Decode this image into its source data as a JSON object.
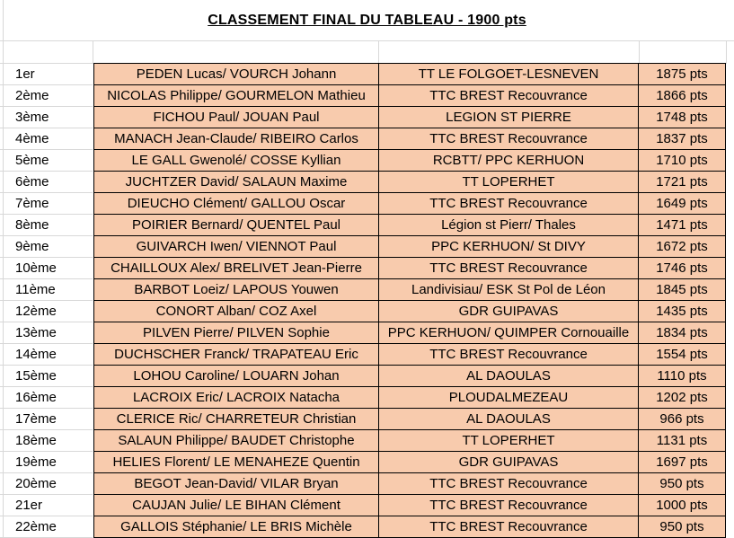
{
  "sheet": {
    "title": "CLASSEMENT FINAL DU TABLEAU - 1900 pts"
  },
  "colors": {
    "cell_fill": "#F8CBAD",
    "cell_border": "#000000",
    "gridline": "#D8D8D8",
    "text": "#000000",
    "background": "#FFFFFF"
  },
  "table": {
    "columns": [
      "rank",
      "players",
      "club",
      "points"
    ],
    "rows": [
      {
        "rank": "1er",
        "players": "PEDEN Lucas/ VOURCH Johann",
        "club": "TT LE FOLGOET-LESNEVEN",
        "points": "1875 pts"
      },
      {
        "rank": "2ème",
        "players": "NICOLAS Philippe/ GOURMELON Mathieu",
        "club": "TTC BREST Recouvrance",
        "points": "1866 pts"
      },
      {
        "rank": "3ème",
        "players": "FICHOU Paul/ JOUAN Paul",
        "club": "LEGION ST PIERRE",
        "points": "1748 pts"
      },
      {
        "rank": "4ème",
        "players": "MANACH Jean-Claude/ RIBEIRO Carlos",
        "club": "TTC BREST Recouvrance",
        "points": "1837 pts"
      },
      {
        "rank": "5ème",
        "players": "LE GALL Gwenolé/ COSSE Kyllian",
        "club": "RCBTT/ PPC KERHUON",
        "points": "1710 pts"
      },
      {
        "rank": "6ème",
        "players": "JUCHTZER David/ SALAUN Maxime",
        "club": "TT LOPERHET",
        "points": "1721 pts"
      },
      {
        "rank": "7ème",
        "players": "DIEUCHO Clément/ GALLOU Oscar",
        "club": "TTC BREST Recouvrance",
        "points": "1649 pts"
      },
      {
        "rank": "8ème",
        "players": "POIRIER Bernard/ QUENTEL Paul",
        "club": "Légion st Pierr/ Thales",
        "points": "1471 pts"
      },
      {
        "rank": "9ème",
        "players": "GUIVARCH Iwen/ VIENNOT Paul",
        "club": "PPC KERHUON/ St DIVY",
        "points": "1672 pts"
      },
      {
        "rank": "10ème",
        "players": "CHAILLOUX Alex/ BRELIVET Jean-Pierre",
        "club": "TTC BREST Recouvrance",
        "points": "1746 pts"
      },
      {
        "rank": "11ème",
        "players": "BARBOT Loeiz/ LAPOUS Youwen",
        "club": "Landivisiau/ ESK St Pol de Léon",
        "points": "1845 pts"
      },
      {
        "rank": "12ème",
        "players": "CONORT Alban/ COZ Axel",
        "club": "GDR GUIPAVAS",
        "points": "1435 pts"
      },
      {
        "rank": "13ème",
        "players": "PILVEN Pierre/ PILVEN Sophie",
        "club": "PPC KERHUON/ QUIMPER Cornouaille",
        "points": "1834 pts"
      },
      {
        "rank": "14ème",
        "players": "DUCHSCHER Franck/ TRAPATEAU Eric",
        "club": "TTC BREST Recouvrance",
        "points": "1554 pts"
      },
      {
        "rank": "15ème",
        "players": "LOHOU Caroline/ LOUARN Johan",
        "club": "AL DAOULAS",
        "points": "1110 pts"
      },
      {
        "rank": "16ème",
        "players": "LACROIX Eric/ LACROIX Natacha",
        "club": "PLOUDALMEZEAU",
        "points": "1202 pts"
      },
      {
        "rank": "17ème",
        "players": "CLERICE Ric/ CHARRETEUR Christian",
        "club": "AL DAOULAS",
        "points": "966 pts"
      },
      {
        "rank": "18ème",
        "players": "SALAUN Philippe/ BAUDET Christophe",
        "club": "TT LOPERHET",
        "points": "1131 pts"
      },
      {
        "rank": "19ème",
        "players": "HELIES Florent/ LE MENAHEZE Quentin",
        "club": "GDR GUIPAVAS",
        "points": "1697 pts"
      },
      {
        "rank": "20ème",
        "players": "BEGOT Jean-David/ VILAR Bryan",
        "club": "TTC BREST Recouvrance",
        "points": "950 pts"
      },
      {
        "rank": "21er",
        "players": "CAUJAN Julie/ LE BIHAN Clément",
        "club": "TTC BREST Recouvrance",
        "points": "1000 pts"
      },
      {
        "rank": "22ème",
        "players": "GALLOIS Stéphanie/ LE BRIS Michèle",
        "club": "TTC BREST Recouvrance",
        "points": "950 pts"
      }
    ]
  }
}
